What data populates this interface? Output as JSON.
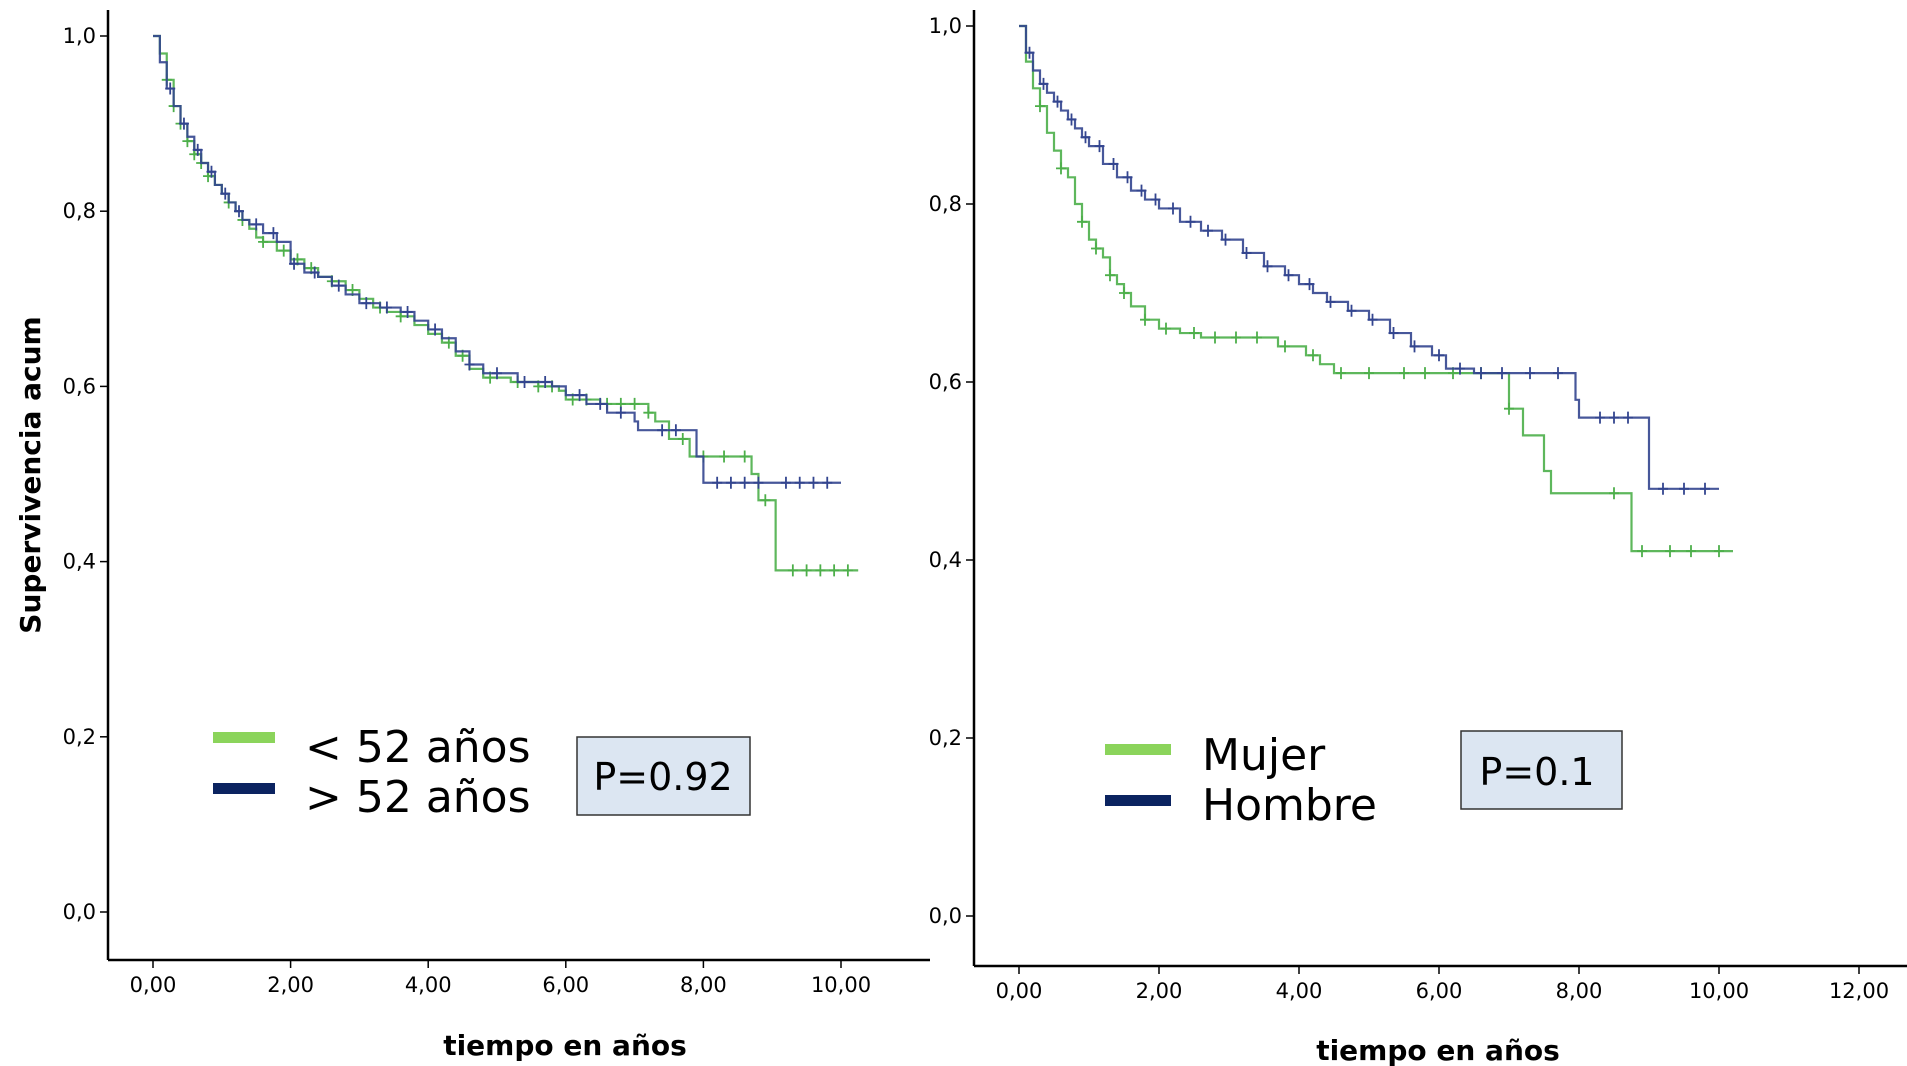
{
  "colors": {
    "green": "#4daf4a",
    "navy": "#33458f",
    "legend_green": "#8bd45b",
    "legend_navy": "#0b2360",
    "pbox_fill": "#dce6f2"
  },
  "chart_data": [
    {
      "type": "line",
      "step": true,
      "ylabel": "Supervivencia acum",
      "xlabel": "tiempo en años",
      "xlim": [
        0,
        10
      ],
      "ylim": [
        0,
        1
      ],
      "x_ticks": [
        "0,00",
        "2,00",
        "4,00",
        "6,00",
        "8,00",
        "10,00"
      ],
      "y_ticks": [
        "0,0",
        "0,2",
        "0,4",
        "0,6",
        "0,8",
        "1,0"
      ],
      "p_value": "P=0.92",
      "series": [
        {
          "name": "< 52 años",
          "color_key": "green",
          "points": [
            [
              0,
              1.0
            ],
            [
              0.1,
              0.98
            ],
            [
              0.2,
              0.95
            ],
            [
              0.3,
              0.92
            ],
            [
              0.4,
              0.9
            ],
            [
              0.5,
              0.88
            ],
            [
              0.6,
              0.865
            ],
            [
              0.7,
              0.855
            ],
            [
              0.8,
              0.84
            ],
            [
              0.9,
              0.83
            ],
            [
              1.0,
              0.82
            ],
            [
              1.1,
              0.81
            ],
            [
              1.2,
              0.8
            ],
            [
              1.3,
              0.79
            ],
            [
              1.4,
              0.78
            ],
            [
              1.5,
              0.77
            ],
            [
              1.6,
              0.765
            ],
            [
              1.8,
              0.755
            ],
            [
              2.0,
              0.745
            ],
            [
              2.2,
              0.735
            ],
            [
              2.4,
              0.725
            ],
            [
              2.6,
              0.72
            ],
            [
              2.8,
              0.71
            ],
            [
              3.0,
              0.7
            ],
            [
              3.2,
              0.69
            ],
            [
              3.4,
              0.685
            ],
            [
              3.6,
              0.68
            ],
            [
              3.8,
              0.67
            ],
            [
              4.0,
              0.66
            ],
            [
              4.2,
              0.65
            ],
            [
              4.4,
              0.635
            ],
            [
              4.6,
              0.62
            ],
            [
              4.8,
              0.61
            ],
            [
              5.2,
              0.605
            ],
            [
              5.6,
              0.6
            ],
            [
              5.9,
              0.595
            ],
            [
              6.0,
              0.585
            ],
            [
              6.5,
              0.58
            ],
            [
              7.0,
              0.58
            ],
            [
              7.2,
              0.57
            ],
            [
              7.3,
              0.56
            ],
            [
              7.5,
              0.54
            ],
            [
              7.8,
              0.52
            ],
            [
              8.5,
              0.52
            ],
            [
              8.7,
              0.5
            ],
            [
              8.8,
              0.47
            ],
            [
              9.0,
              0.47
            ],
            [
              9.05,
              0.39
            ],
            [
              10.25,
              0.39
            ]
          ],
          "censor_x": [
            0.2,
            0.3,
            0.4,
            0.5,
            0.6,
            0.7,
            0.8,
            1.1,
            1.3,
            1.6,
            1.9,
            2.1,
            2.3,
            2.6,
            2.9,
            3.3,
            3.6,
            4.3,
            4.5,
            4.9,
            5.3,
            5.6,
            5.8,
            6.1,
            6.3,
            6.6,
            6.8,
            7.0,
            7.2,
            7.7,
            8.0,
            8.3,
            8.6,
            8.9,
            9.3,
            9.5,
            9.7,
            9.9,
            10.1
          ]
        },
        {
          "name": "> 52 años",
          "color_key": "navy",
          "points": [
            [
              0,
              1.0
            ],
            [
              0.1,
              0.97
            ],
            [
              0.2,
              0.94
            ],
            [
              0.3,
              0.92
            ],
            [
              0.4,
              0.9
            ],
            [
              0.5,
              0.885
            ],
            [
              0.6,
              0.87
            ],
            [
              0.7,
              0.855
            ],
            [
              0.8,
              0.845
            ],
            [
              0.9,
              0.83
            ],
            [
              1.0,
              0.82
            ],
            [
              1.1,
              0.81
            ],
            [
              1.2,
              0.8
            ],
            [
              1.3,
              0.79
            ],
            [
              1.4,
              0.785
            ],
            [
              1.6,
              0.775
            ],
            [
              1.8,
              0.765
            ],
            [
              2.0,
              0.74
            ],
            [
              2.2,
              0.73
            ],
            [
              2.4,
              0.725
            ],
            [
              2.6,
              0.715
            ],
            [
              2.8,
              0.705
            ],
            [
              3.0,
              0.695
            ],
            [
              3.3,
              0.69
            ],
            [
              3.6,
              0.685
            ],
            [
              3.8,
              0.675
            ],
            [
              4.0,
              0.665
            ],
            [
              4.2,
              0.655
            ],
            [
              4.4,
              0.64
            ],
            [
              4.6,
              0.625
            ],
            [
              4.8,
              0.615
            ],
            [
              5.3,
              0.605
            ],
            [
              5.8,
              0.6
            ],
            [
              6.0,
              0.59
            ],
            [
              6.3,
              0.58
            ],
            [
              6.6,
              0.57
            ],
            [
              7.0,
              0.56
            ],
            [
              7.05,
              0.55
            ],
            [
              7.8,
              0.55
            ],
            [
              7.9,
              0.52
            ],
            [
              8.0,
              0.49
            ],
            [
              8.3,
              0.49
            ],
            [
              9.0,
              0.49
            ],
            [
              10.0,
              0.49
            ]
          ],
          "censor_x": [
            0.25,
            0.45,
            0.65,
            0.85,
            1.05,
            1.25,
            1.5,
            1.75,
            2.05,
            2.35,
            2.7,
            3.1,
            3.4,
            3.7,
            4.1,
            4.6,
            5.0,
            5.4,
            5.7,
            6.2,
            6.5,
            6.8,
            7.4,
            7.6,
            8.2,
            8.4,
            8.6,
            8.8,
            9.2,
            9.4,
            9.6,
            9.8
          ]
        }
      ]
    },
    {
      "type": "line",
      "step": true,
      "xlabel": "tiempo en años",
      "xlim": [
        0,
        12
      ],
      "ylim": [
        0,
        1
      ],
      "x_ticks": [
        "0,00",
        "2,00",
        "4,00",
        "6,00",
        "8,00",
        "10,00",
        "12,00"
      ],
      "y_ticks": [
        "0,0",
        "0,2",
        "0,4",
        "0,6",
        "0,8",
        "1,0"
      ],
      "p_value": "P=0.1",
      "series": [
        {
          "name": "Mujer",
          "color_key": "green",
          "points": [
            [
              0,
              1.0
            ],
            [
              0.1,
              0.96
            ],
            [
              0.2,
              0.93
            ],
            [
              0.3,
              0.91
            ],
            [
              0.4,
              0.88
            ],
            [
              0.5,
              0.86
            ],
            [
              0.6,
              0.84
            ],
            [
              0.7,
              0.83
            ],
            [
              0.8,
              0.8
            ],
            [
              0.9,
              0.78
            ],
            [
              1.0,
              0.76
            ],
            [
              1.1,
              0.75
            ],
            [
              1.2,
              0.74
            ],
            [
              1.3,
              0.72
            ],
            [
              1.4,
              0.71
            ],
            [
              1.5,
              0.7
            ],
            [
              1.6,
              0.685
            ],
            [
              1.8,
              0.67
            ],
            [
              2.0,
              0.66
            ],
            [
              2.3,
              0.655
            ],
            [
              2.6,
              0.65
            ],
            [
              3.0,
              0.65
            ],
            [
              3.6,
              0.65
            ],
            [
              3.7,
              0.64
            ],
            [
              4.1,
              0.63
            ],
            [
              4.3,
              0.62
            ],
            [
              4.5,
              0.61
            ],
            [
              6.0,
              0.61
            ],
            [
              6.9,
              0.61
            ],
            [
              7.0,
              0.57
            ],
            [
              7.2,
              0.54
            ],
            [
              7.5,
              0.5
            ],
            [
              7.6,
              0.475
            ],
            [
              8.7,
              0.475
            ],
            [
              8.75,
              0.41
            ],
            [
              10.2,
              0.41
            ]
          ],
          "censor_x": [
            0.3,
            0.6,
            0.9,
            1.1,
            1.3,
            1.5,
            1.8,
            2.1,
            2.5,
            2.8,
            3.1,
            3.4,
            3.8,
            4.2,
            4.6,
            5.0,
            5.5,
            5.8,
            6.2,
            6.6,
            7.0,
            8.5,
            8.9,
            9.3,
            9.6,
            10.0
          ]
        },
        {
          "name": "Hombre",
          "color_key": "navy",
          "points": [
            [
              0,
              1.0
            ],
            [
              0.1,
              0.97
            ],
            [
              0.2,
              0.95
            ],
            [
              0.3,
              0.935
            ],
            [
              0.4,
              0.925
            ],
            [
              0.5,
              0.915
            ],
            [
              0.6,
              0.905
            ],
            [
              0.7,
              0.895
            ],
            [
              0.8,
              0.885
            ],
            [
              0.9,
              0.875
            ],
            [
              1.0,
              0.865
            ],
            [
              1.2,
              0.845
            ],
            [
              1.4,
              0.83
            ],
            [
              1.6,
              0.815
            ],
            [
              1.8,
              0.805
            ],
            [
              2.0,
              0.795
            ],
            [
              2.3,
              0.78
            ],
            [
              2.6,
              0.77
            ],
            [
              2.9,
              0.76
            ],
            [
              3.2,
              0.745
            ],
            [
              3.5,
              0.73
            ],
            [
              3.8,
              0.72
            ],
            [
              4.0,
              0.71
            ],
            [
              4.2,
              0.7
            ],
            [
              4.4,
              0.69
            ],
            [
              4.7,
              0.68
            ],
            [
              5.0,
              0.67
            ],
            [
              5.3,
              0.655
            ],
            [
              5.6,
              0.64
            ],
            [
              5.9,
              0.63
            ],
            [
              6.1,
              0.615
            ],
            [
              6.5,
              0.61
            ],
            [
              7.0,
              0.61
            ],
            [
              7.9,
              0.61
            ],
            [
              7.95,
              0.58
            ],
            [
              8.0,
              0.56
            ],
            [
              8.9,
              0.56
            ],
            [
              9.0,
              0.48
            ],
            [
              10.0,
              0.48
            ]
          ],
          "censor_x": [
            0.15,
            0.35,
            0.55,
            0.75,
            0.95,
            1.15,
            1.35,
            1.55,
            1.75,
            1.95,
            2.2,
            2.45,
            2.7,
            2.95,
            3.25,
            3.55,
            3.85,
            4.15,
            4.45,
            4.75,
            5.05,
            5.35,
            5.65,
            6.0,
            6.3,
            6.6,
            6.9,
            7.3,
            7.7,
            8.3,
            8.5,
            8.7,
            9.2,
            9.5,
            9.8
          ]
        }
      ]
    }
  ]
}
